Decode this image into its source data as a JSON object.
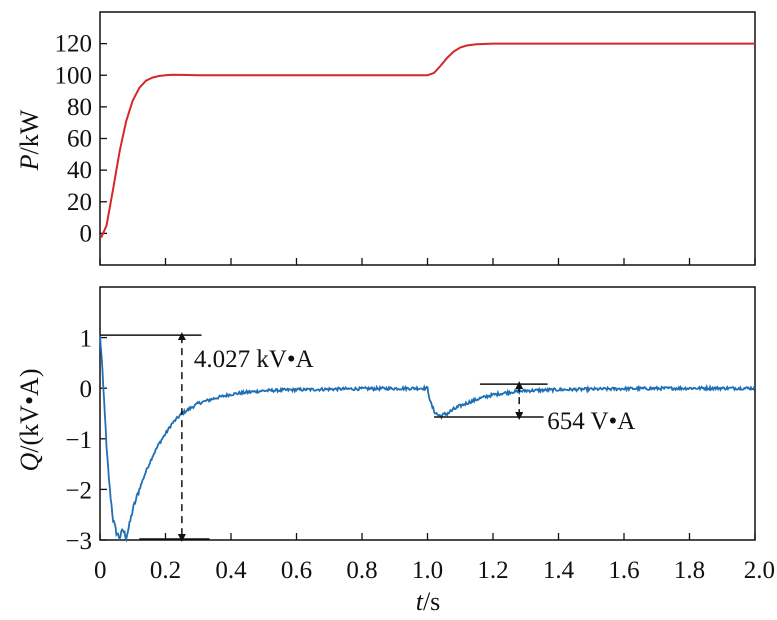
{
  "chart_data": [
    {
      "type": "line",
      "panel": "top",
      "ylabel": {
        "var": "P",
        "unit": "/kW"
      },
      "xlim": [
        0,
        2.0
      ],
      "ylim": [
        -20,
        140
      ],
      "yticks": [
        "0",
        "20",
        "40",
        "60",
        "80",
        "100",
        "120"
      ],
      "ytick_values": [
        0,
        20,
        40,
        60,
        80,
        100,
        120
      ],
      "xticks_unlabeled": [
        0,
        0.2,
        0.4,
        0.6,
        0.8,
        1.0,
        1.2,
        1.4,
        1.6,
        1.8,
        2.0
      ],
      "grid": false,
      "color": "#d62728",
      "series": [
        {
          "x": [
            0,
            0.005,
            0.02,
            0.04,
            0.06,
            0.08,
            0.1,
            0.12,
            0.14,
            0.16,
            0.18,
            0.2,
            0.22,
            0.25,
            0.3,
            0.5,
            0.8,
            1.0,
            1.02,
            1.04,
            1.06,
            1.08,
            1.1,
            1.12,
            1.15,
            1.2,
            1.4,
            2.0
          ],
          "y": [
            -1,
            -2,
            5,
            28,
            52,
            71,
            84,
            92,
            96.5,
            98.5,
            99.5,
            100,
            100.3,
            100.2,
            100,
            100,
            100,
            100,
            101.5,
            106,
            111,
            115,
            117.5,
            118.8,
            119.6,
            120,
            120,
            120
          ]
        }
      ]
    },
    {
      "type": "line",
      "panel": "bottom",
      "ylabel": {
        "var": "Q",
        "unit": "/(kV•A)"
      },
      "xlabel": {
        "var": "t",
        "unit": "/s"
      },
      "xlim": [
        0,
        2.0
      ],
      "ylim": [
        -3,
        2
      ],
      "yticks": [
        "1",
        "0",
        "−1",
        "−2",
        "−3"
      ],
      "ytick_values": [
        1,
        0,
        -1,
        -2,
        -3
      ],
      "xticks": [
        "0",
        "0.2",
        "0.4",
        "0.6",
        "0.8",
        "1.0",
        "1.2",
        "1.4",
        "1.6",
        "1.8",
        "2.0"
      ],
      "xtick_values": [
        0,
        0.2,
        0.4,
        0.6,
        0.8,
        1.0,
        1.2,
        1.4,
        1.6,
        1.8,
        2.0
      ],
      "grid": false,
      "color": "#1f6fb4",
      "series": [
        {
          "x": [
            0,
            0.005,
            0.01,
            0.015,
            0.02,
            0.03,
            0.04,
            0.05,
            0.06,
            0.07,
            0.08,
            0.09,
            0.1,
            0.12,
            0.14,
            0.16,
            0.18,
            0.2,
            0.22,
            0.25,
            0.28,
            0.3,
            0.35,
            0.4,
            0.45,
            0.5,
            0.6,
            0.8,
            1.0,
            1.01,
            1.02,
            1.03,
            1.04,
            1.06,
            1.08,
            1.1,
            1.13,
            1.16,
            1.2,
            1.25,
            1.3,
            1.4,
            1.6,
            1.8,
            2.0
          ],
          "y": [
            1.05,
            0.6,
            0.0,
            -0.5,
            -1.2,
            -2.0,
            -2.6,
            -2.85,
            -2.95,
            -2.8,
            -2.95,
            -2.7,
            -2.4,
            -2.0,
            -1.65,
            -1.35,
            -1.1,
            -0.9,
            -0.7,
            -0.5,
            -0.38,
            -0.3,
            -0.2,
            -0.12,
            -0.08,
            -0.05,
            -0.03,
            -0.01,
            0.0,
            -0.3,
            -0.45,
            -0.52,
            -0.55,
            -0.5,
            -0.42,
            -0.35,
            -0.27,
            -0.2,
            -0.13,
            -0.08,
            -0.05,
            -0.03,
            -0.01,
            0.0,
            0.0
          ]
        }
      ],
      "annotations": [
        {
          "text": "4.027 kV•A",
          "from": [
            0.25,
            1.05
          ],
          "to": [
            0.25,
            -2.98
          ],
          "line_x": [
            0.0,
            0.31
          ]
        },
        {
          "text": "654 V•A",
          "from": [
            1.28,
            0.08
          ],
          "to": [
            1.28,
            -0.57
          ],
          "line_x": [
            1.0,
            1.33
          ]
        }
      ]
    }
  ]
}
